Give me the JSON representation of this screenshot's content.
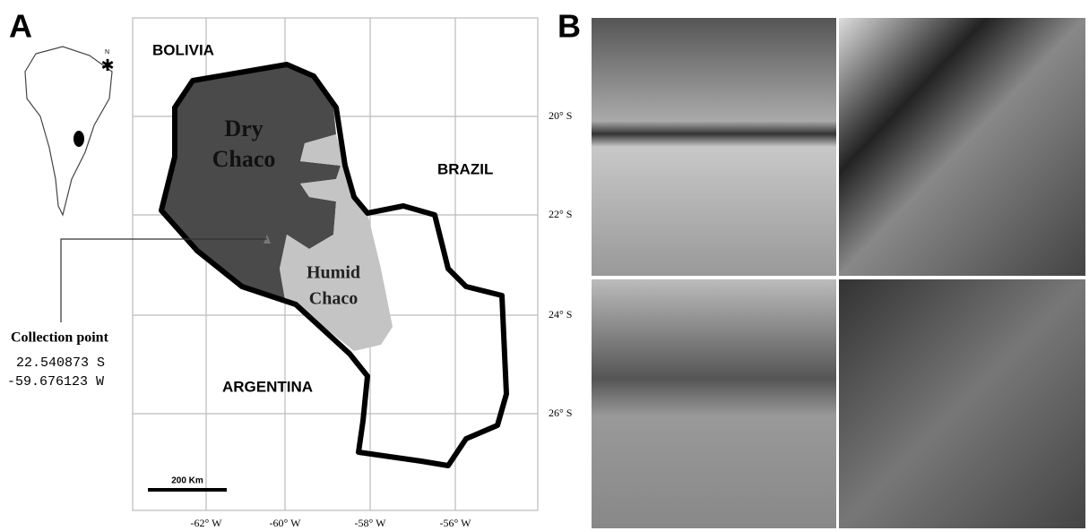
{
  "panels": {
    "a": "A",
    "b": "B"
  },
  "map": {
    "countries": [
      "BOLIVIA",
      "BRAZIL",
      "ARGENTINA"
    ],
    "regions": {
      "dry_chaco": [
        "Dry",
        "Chaco"
      ],
      "humid_chaco": [
        "Humid",
        "Chaco"
      ]
    },
    "latitudes": [
      "20° S",
      "22° S",
      "24° S",
      "26° S"
    ],
    "longitudes": [
      "-62° W",
      "-60° W",
      "-58° W",
      "-56° W"
    ],
    "scale": "200 Km",
    "north": "N",
    "collection_point": {
      "label": "Collection point",
      "lat": "22.540873 S",
      "lon": "-59.676123 W"
    }
  }
}
